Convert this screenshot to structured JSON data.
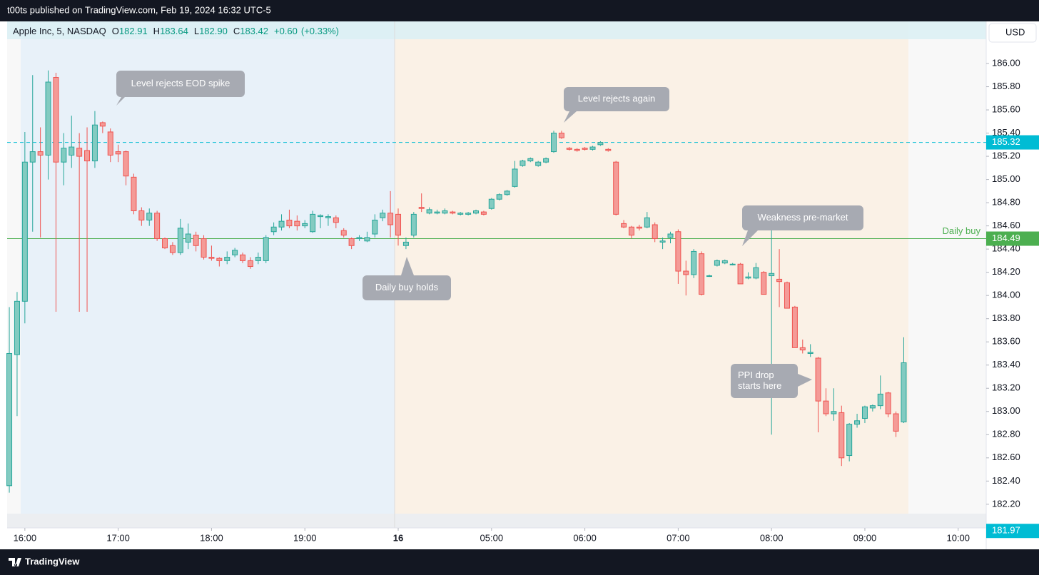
{
  "header": {
    "published": "t00ts published on TradingView.com, Feb 19, 2024 16:32 UTC-5",
    "brand": "TradingView"
  },
  "chart_data": {
    "type": "candlestick",
    "legend": {
      "name": "Apple Inc, 5, NASDAQ",
      "items": [
        {
          "label": "O",
          "value": "182.91"
        },
        {
          "label": "H",
          "value": "183.64"
        },
        {
          "label": "L",
          "value": "182.90"
        },
        {
          "label": "C",
          "value": "183.42"
        }
      ],
      "change": "+0.60",
      "change_pct": "(+0.33%)"
    },
    "currency": "USD",
    "up_color": "#26a69a",
    "down_color": "#ef5350",
    "candles": [
      [
        182.36,
        183.9,
        182.3,
        183.5
      ],
      [
        183.49,
        184.03,
        182.96,
        183.95
      ],
      [
        183.95,
        185.41,
        183.76,
        185.15
      ],
      [
        185.15,
        185.9,
        184.55,
        185.24
      ],
      [
        185.24,
        185.45,
        184.5,
        185.21
      ],
      [
        185.21,
        185.94,
        185.0,
        185.84
      ],
      [
        185.88,
        185.92,
        183.86,
        185.15
      ],
      [
        185.15,
        185.4,
        184.95,
        185.27
      ],
      [
        185.21,
        185.55,
        185.1,
        185.28
      ],
      [
        185.27,
        185.4,
        183.86,
        185.2
      ],
      [
        185.25,
        185.45,
        183.86,
        185.16
      ],
      [
        185.16,
        185.59,
        185.1,
        185.47
      ],
      [
        185.49,
        185.5,
        185.4,
        185.46
      ],
      [
        185.41,
        185.44,
        185.15,
        185.21
      ],
      [
        185.24,
        185.3,
        185.15,
        185.22
      ],
      [
        185.24,
        185.25,
        184.95,
        185.03
      ],
      [
        185.02,
        185.05,
        184.7,
        184.73
      ],
      [
        184.73,
        184.76,
        184.6,
        184.65
      ],
      [
        184.65,
        184.75,
        184.6,
        184.71
      ],
      [
        184.71,
        184.73,
        184.47,
        184.49
      ],
      [
        184.49,
        184.5,
        184.4,
        184.41
      ],
      [
        184.43,
        184.46,
        184.35,
        184.37
      ],
      [
        184.37,
        184.66,
        184.35,
        184.58
      ],
      [
        184.46,
        184.62,
        184.4,
        184.53
      ],
      [
        184.52,
        184.55,
        184.38,
        184.43
      ],
      [
        184.49,
        184.52,
        184.31,
        184.33
      ],
      [
        184.33,
        184.43,
        184.3,
        184.32
      ],
      [
        184.32,
        184.33,
        184.25,
        184.3
      ],
      [
        184.3,
        184.38,
        184.27,
        184.33
      ],
      [
        184.35,
        184.41,
        184.33,
        184.39
      ],
      [
        184.35,
        184.37,
        184.28,
        184.3
      ],
      [
        184.3,
        184.33,
        184.23,
        184.25
      ],
      [
        184.3,
        184.37,
        184.27,
        184.33
      ],
      [
        184.3,
        184.52,
        184.28,
        184.5
      ],
      [
        184.55,
        184.63,
        184.52,
        184.59
      ],
      [
        184.59,
        184.7,
        184.56,
        184.64
      ],
      [
        184.65,
        184.74,
        184.58,
        184.6
      ],
      [
        184.64,
        184.69,
        184.56,
        184.6
      ],
      [
        184.6,
        184.65,
        184.58,
        184.62
      ],
      [
        184.55,
        184.73,
        184.54,
        184.7
      ],
      [
        184.68,
        184.7,
        184.58,
        184.69
      ],
      [
        184.67,
        184.7,
        184.6,
        184.68
      ],
      [
        184.67,
        184.69,
        184.58,
        184.63
      ],
      [
        184.56,
        184.58,
        184.5,
        184.52
      ],
      [
        184.49,
        184.5,
        184.4,
        184.43
      ],
      [
        184.49,
        184.52,
        184.47,
        184.5
      ],
      [
        184.47,
        184.55,
        184.46,
        184.5
      ],
      [
        184.53,
        184.7,
        184.5,
        184.65
      ],
      [
        184.67,
        184.74,
        184.64,
        184.71
      ],
      [
        184.71,
        184.9,
        184.5,
        184.61
      ],
      [
        184.7,
        184.75,
        184.43,
        184.52
      ],
      [
        184.43,
        184.5,
        184.4,
        184.46
      ],
      [
        184.52,
        184.72,
        184.5,
        184.7
      ],
      [
        184.76,
        184.88,
        184.72,
        184.75
      ],
      [
        184.71,
        184.76,
        184.7,
        184.74
      ],
      [
        184.71,
        184.74,
        184.7,
        184.72
      ],
      [
        184.71,
        184.75,
        184.7,
        184.73
      ],
      [
        184.72,
        184.73,
        184.7,
        184.71
      ],
      [
        184.7,
        184.72,
        184.69,
        184.71
      ],
      [
        184.7,
        184.72,
        184.69,
        184.71
      ],
      [
        184.71,
        184.74,
        184.7,
        184.73
      ],
      [
        184.72,
        184.73,
        184.69,
        184.7
      ],
      [
        184.75,
        184.84,
        184.74,
        184.83
      ],
      [
        184.83,
        184.88,
        184.82,
        184.87
      ],
      [
        184.87,
        184.91,
        184.86,
        184.9
      ],
      [
        184.94,
        185.16,
        184.93,
        185.09
      ],
      [
        185.12,
        185.17,
        185.11,
        185.16
      ],
      [
        185.16,
        185.19,
        185.15,
        185.18
      ],
      [
        185.12,
        185.16,
        185.11,
        185.15
      ],
      [
        185.15,
        185.19,
        185.14,
        185.18
      ],
      [
        185.24,
        185.42,
        185.23,
        185.4
      ],
      [
        185.4,
        185.42,
        185.35,
        185.36
      ],
      [
        185.27,
        185.28,
        185.25,
        185.26
      ],
      [
        185.26,
        185.27,
        185.24,
        185.25
      ],
      [
        185.27,
        185.28,
        185.25,
        185.26
      ],
      [
        185.26,
        185.29,
        185.25,
        185.28
      ],
      [
        185.3,
        185.33,
        185.29,
        185.32
      ],
      [
        185.26,
        185.27,
        185.24,
        185.25
      ],
      [
        185.15,
        185.16,
        184.69,
        184.7
      ],
      [
        184.62,
        184.65,
        184.58,
        184.59
      ],
      [
        184.59,
        184.6,
        184.49,
        184.52
      ],
      [
        184.59,
        184.61,
        184.56,
        184.58
      ],
      [
        184.59,
        184.72,
        184.58,
        184.67
      ],
      [
        184.61,
        184.63,
        184.46,
        184.49
      ],
      [
        184.46,
        184.5,
        184.4,
        184.47
      ],
      [
        184.5,
        184.55,
        184.45,
        184.53
      ],
      [
        184.55,
        184.57,
        184.1,
        184.21
      ],
      [
        184.21,
        184.3,
        184.0,
        184.18
      ],
      [
        184.18,
        184.4,
        184.15,
        184.38
      ],
      [
        184.36,
        184.38,
        184.0,
        184.01
      ],
      [
        184.17,
        184.18,
        184.16,
        184.17
      ],
      [
        184.26,
        184.31,
        184.25,
        184.3
      ],
      [
        184.28,
        184.31,
        184.27,
        184.3
      ],
      [
        184.27,
        184.28,
        184.26,
        184.27
      ],
      [
        184.27,
        184.28,
        184.1,
        184.1
      ],
      [
        184.15,
        184.2,
        184.14,
        184.16
      ],
      [
        184.15,
        184.28,
        184.14,
        184.24
      ],
      [
        184.2,
        184.21,
        184.01,
        184.01
      ],
      [
        184.17,
        184.6,
        182.8,
        184.19
      ],
      [
        184.14,
        184.4,
        183.9,
        184.12
      ],
      [
        184.11,
        184.12,
        183.89,
        183.89
      ],
      [
        183.9,
        183.91,
        183.55,
        183.55
      ],
      [
        183.55,
        183.62,
        183.5,
        183.53
      ],
      [
        183.5,
        183.58,
        183.47,
        183.51
      ],
      [
        183.46,
        183.47,
        182.82,
        183.09
      ],
      [
        183.09,
        183.2,
        182.96,
        182.98
      ],
      [
        182.98,
        183.2,
        182.92,
        183.0
      ],
      [
        182.99,
        183.05,
        182.53,
        182.6
      ],
      [
        182.62,
        182.9,
        182.57,
        182.89
      ],
      [
        182.89,
        182.98,
        182.86,
        182.92
      ],
      [
        182.94,
        183.05,
        182.9,
        183.04
      ],
      [
        183.03,
        183.06,
        183.0,
        183.05
      ],
      [
        183.05,
        183.31,
        183.02,
        183.15
      ],
      [
        183.16,
        183.17,
        182.95,
        182.98
      ],
      [
        182.98,
        183.0,
        182.78,
        182.83
      ],
      [
        182.91,
        183.64,
        182.9,
        183.42
      ]
    ],
    "xlim": [
      -0.28,
      125.6
    ],
    "xticks": [
      {
        "value": 2,
        "label": "16:00"
      },
      {
        "value": 14,
        "label": "17:00"
      },
      {
        "value": 26,
        "label": "18:00"
      },
      {
        "value": 38,
        "label": "19:00"
      },
      {
        "value": 50,
        "label": "16"
      },
      {
        "value": 62,
        "label": "05:00"
      },
      {
        "value": 74,
        "label": "06:00"
      },
      {
        "value": 86,
        "label": "07:00"
      },
      {
        "value": 98,
        "label": "08:00"
      },
      {
        "value": 110,
        "label": "09:00"
      },
      {
        "value": 122,
        "label": "10:00"
      }
    ],
    "ylim": [
      181.996,
      186.363
    ],
    "yticks": [
      {
        "value": 182.2,
        "label": "182.20"
      },
      {
        "value": 182.4,
        "label": "182.40"
      },
      {
        "value": 182.6,
        "label": "182.60"
      },
      {
        "value": 182.8,
        "label": "182.80"
      },
      {
        "value": 183,
        "label": "183.00"
      },
      {
        "value": 183.2,
        "label": "183.20"
      },
      {
        "value": 183.4,
        "label": "183.40"
      },
      {
        "value": 183.6,
        "label": "183.60"
      },
      {
        "value": 183.8,
        "label": "183.80"
      },
      {
        "value": 184,
        "label": "184.00"
      },
      {
        "value": 184.2,
        "label": "184.20"
      },
      {
        "value": 184.4,
        "label": "184.40"
      },
      {
        "value": 184.6,
        "label": "184.60"
      },
      {
        "value": 184.8,
        "label": "184.80"
      },
      {
        "value": 185,
        "label": "185.00"
      },
      {
        "value": 185.2,
        "label": "185.20"
      },
      {
        "value": 185.4,
        "label": "185.40"
      },
      {
        "value": 185.6,
        "label": "185.60"
      },
      {
        "value": 185.8,
        "label": "185.80"
      },
      {
        "value": 186,
        "label": "186.00"
      }
    ],
    "levels": [
      {
        "value": 185.32,
        "color": "#00bcd4",
        "style": "dashed"
      },
      {
        "value": 184.49,
        "color": "#4caf50",
        "style": "solid",
        "name": "Daily buy"
      }
    ],
    "last_marker": {
      "value": 181.97,
      "color": "#00bcd4"
    },
    "annotations": [
      {
        "lines": [
          "Level rejects EOD spike"
        ]
      },
      {
        "lines": [
          "Level rejects again"
        ]
      },
      {
        "lines": [
          "Weakness pre-market"
        ]
      },
      {
        "lines": [
          "Daily buy holds"
        ]
      },
      {
        "lines": [
          "PPI drop",
          "starts here"
        ]
      }
    ]
  }
}
